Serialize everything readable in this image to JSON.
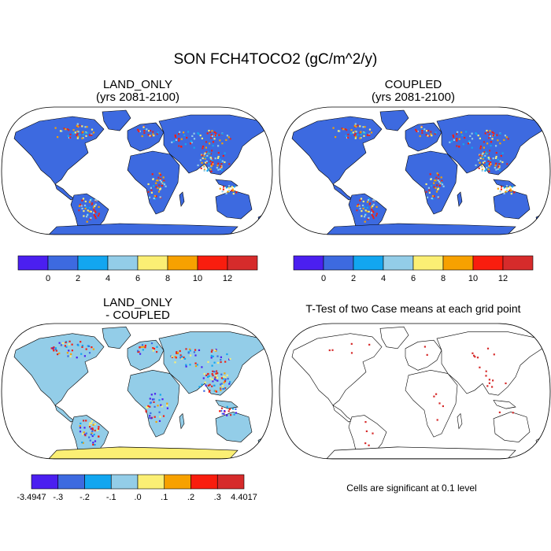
{
  "figure": {
    "title": "SON FCH4TOCO2 (gC/m^2/y)"
  },
  "panels": [
    {
      "id": "land_only",
      "title_line1": "LAND_ONLY",
      "title_line2": "(yrs 2081-2100)"
    },
    {
      "id": "coupled",
      "title_line1": "COUPLED",
      "title_line2": "(yrs 2081-2100)"
    },
    {
      "id": "difference",
      "title_line1": "LAND_ONLY",
      "title_line2": "- COUPLED"
    },
    {
      "id": "ttest",
      "title_line1": "T-Test of two Case means at each grid point",
      "title_line2": ""
    }
  ],
  "note": "Cells are significant at 0.1 level",
  "colorbars": {
    "absolute": {
      "colors": [
        "#4b1ff0",
        "#3d6ae0",
        "#12a6f0",
        "#93cde8",
        "#fbef74",
        "#f7a100",
        "#f91d0e",
        "#d62b2b"
      ],
      "labels": [
        "0",
        "2",
        "4",
        "6",
        "8",
        "10",
        "12"
      ]
    },
    "difference": {
      "colors": [
        "#4b1ff0",
        "#3d6ae0",
        "#12a6f0",
        "#93cde8",
        "#fbef74",
        "#f7a100",
        "#f91d0e",
        "#d62b2b"
      ],
      "labels": [
        "-3.4947",
        "-.3",
        "-.2",
        "-.1",
        ".0",
        ".1",
        ".2",
        ".3",
        "4.4017"
      ]
    }
  },
  "chart_data": [
    {
      "type": "heatmap",
      "panel": "LAND_ONLY (yrs 2081-2100)",
      "projection": "robinson world map",
      "levels": [
        0,
        2,
        4,
        6,
        8,
        10,
        12
      ],
      "dominant_class": "0-2",
      "hotspots": [
        "South/Southeast Asia",
        "Amazon",
        "Central Africa",
        "Siberia",
        "Eastern North America"
      ]
    },
    {
      "type": "heatmap",
      "panel": "COUPLED (yrs 2081-2100)",
      "projection": "robinson world map",
      "levels": [
        0,
        2,
        4,
        6,
        8,
        10,
        12
      ],
      "dominant_class": "0-2",
      "hotspots": [
        "South/Southeast Asia",
        "Amazon",
        "Central Africa",
        "Siberia",
        "Eastern North America"
      ]
    },
    {
      "type": "heatmap",
      "panel": "LAND_ONLY - COUPLED",
      "projection": "robinson world map",
      "levels": [
        -0.3,
        -0.2,
        -0.1,
        0.0,
        0.1,
        0.2,
        0.3
      ],
      "min": -3.4947,
      "max": 4.4017,
      "dominant_class": "-0.1-0.0"
    },
    {
      "type": "heatmap",
      "panel": "T-Test of two Case means at each grid point",
      "projection": "robinson world map",
      "significance_level": 0.1
    }
  ]
}
